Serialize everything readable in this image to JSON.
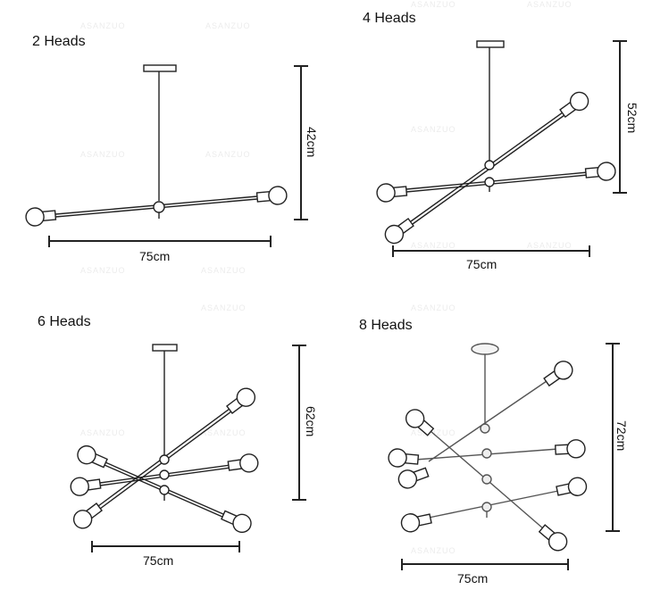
{
  "panels": [
    {
      "title": "2 Heads",
      "width_label": "75cm",
      "height_label": "42cm"
    },
    {
      "title": "4 Heads",
      "width_label": "75cm",
      "height_label": "52cm"
    },
    {
      "title": "6 Heads",
      "width_label": "75cm",
      "height_label": "62cm"
    },
    {
      "title": "8 Heads",
      "width_label": "75cm",
      "height_label": "72cm"
    }
  ],
  "watermark": "ASANZUO"
}
